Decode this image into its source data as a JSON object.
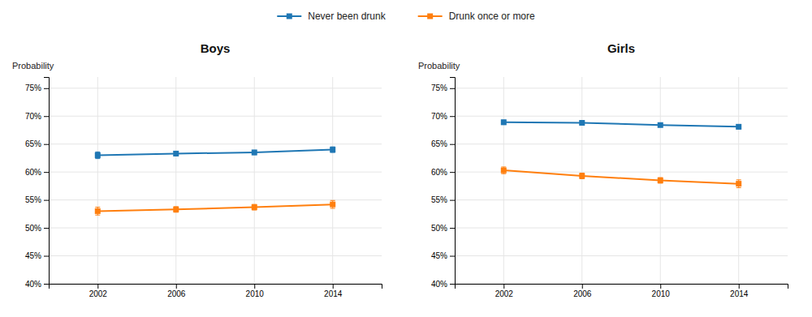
{
  "chart_data": [
    {
      "type": "line",
      "title": "Boys",
      "y_label": "Probability",
      "x": [
        2002,
        2006,
        2010,
        2014
      ],
      "xlim": [
        1999.5,
        2016.5
      ],
      "xticks": [
        2002,
        2006,
        2010,
        2014
      ],
      "ylim": [
        0.4,
        0.77
      ],
      "yticks": [
        {
          "value": 0.4,
          "label": "40%"
        },
        {
          "value": 0.45,
          "label": "45%"
        },
        {
          "value": 0.5,
          "label": "50%"
        },
        {
          "value": 0.55,
          "label": "55%"
        },
        {
          "value": 0.6,
          "label": "60%"
        },
        {
          "value": 0.65,
          "label": "65%"
        },
        {
          "value": 0.7,
          "label": "70%"
        },
        {
          "value": 0.75,
          "label": "75%"
        }
      ],
      "grid": true,
      "legend": "top",
      "marker": "square",
      "series": [
        {
          "name": "Never been drunk",
          "values": [
            0.63,
            0.633,
            0.635,
            0.64
          ],
          "yerr": [
            0.006,
            0.004,
            0.004,
            0.005
          ]
        },
        {
          "name": "Drunk once or more",
          "values": [
            0.53,
            0.533,
            0.537,
            0.542
          ],
          "yerr": [
            0.007,
            0.005,
            0.005,
            0.007
          ]
        }
      ]
    },
    {
      "type": "line",
      "title": "Girls",
      "y_label": "Probability",
      "x": [
        2002,
        2006,
        2010,
        2014
      ],
      "xlim": [
        1999.5,
        2016.5
      ],
      "xticks": [
        2002,
        2006,
        2010,
        2014
      ],
      "ylim": [
        0.4,
        0.77
      ],
      "yticks": [
        {
          "value": 0.4,
          "label": "40%"
        },
        {
          "value": 0.45,
          "label": "45%"
        },
        {
          "value": 0.5,
          "label": "50%"
        },
        {
          "value": 0.55,
          "label": "55%"
        },
        {
          "value": 0.6,
          "label": "60%"
        },
        {
          "value": 0.65,
          "label": "65%"
        },
        {
          "value": 0.7,
          "label": "70%"
        },
        {
          "value": 0.75,
          "label": "75%"
        }
      ],
      "grid": true,
      "marker": "square",
      "series": [
        {
          "name": "Never been drunk",
          "values": [
            0.689,
            0.688,
            0.684,
            0.681
          ],
          "yerr": [
            0.004,
            0.003,
            0.003,
            0.004
          ]
        },
        {
          "name": "Drunk once or more",
          "values": [
            0.603,
            0.593,
            0.585,
            0.579
          ],
          "yerr": [
            0.006,
            0.005,
            0.005,
            0.007
          ]
        }
      ]
    }
  ]
}
